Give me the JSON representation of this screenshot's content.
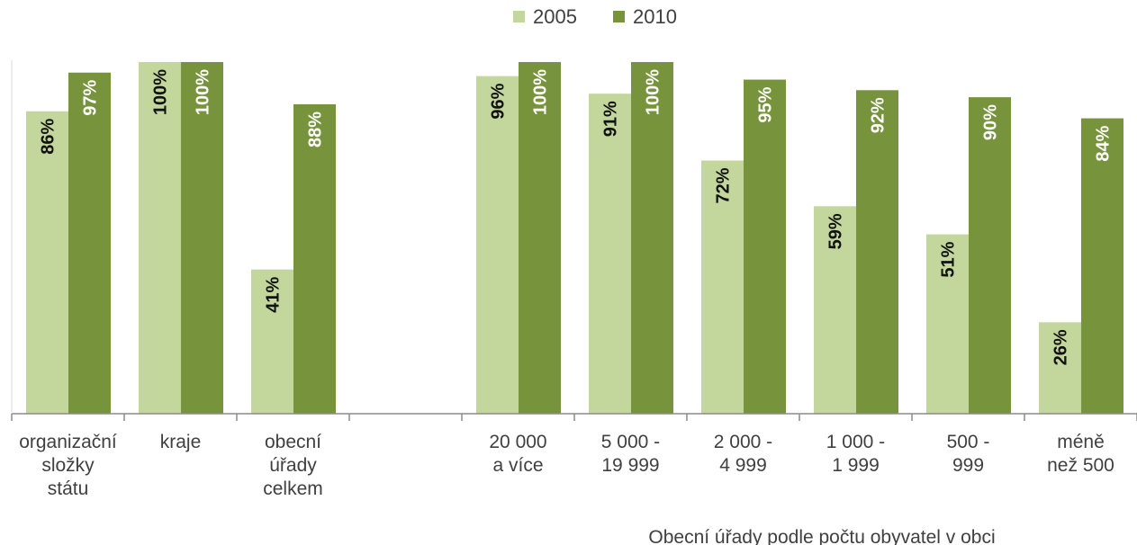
{
  "colors": {
    "s2005": "#c3d69b",
    "s2010": "#77933c",
    "axis": "#8c8c8c",
    "text": "#404040"
  },
  "legend": [
    {
      "name": "2005",
      "color": "#c3d69b"
    },
    {
      "name": "2010",
      "color": "#77933c"
    }
  ],
  "group_label": "Obecní úřady podle počtu obyvatel v obci",
  "chart_data": {
    "type": "bar",
    "categories": [
      [
        "organizační",
        "složky",
        "státu"
      ],
      [
        "kraje"
      ],
      [
        "obecní",
        "úřady",
        "celkem"
      ],
      [],
      [
        "20 000",
        "a více"
      ],
      [
        "5 000 -",
        "19 999"
      ],
      [
        "2 000 -",
        "4 999"
      ],
      [
        "1 000 -",
        "1 999"
      ],
      [
        "500 -",
        "999"
      ],
      [
        "méně",
        "než 500"
      ]
    ],
    "series": [
      {
        "name": "2005",
        "values": [
          86,
          100,
          41,
          null,
          96,
          91,
          72,
          59,
          51,
          26
        ]
      },
      {
        "name": "2010",
        "values": [
          97,
          100,
          88,
          null,
          100,
          100,
          95,
          92,
          90,
          84
        ]
      }
    ],
    "data_labels": [
      [
        "86%",
        "100%",
        "41%",
        "",
        "96%",
        "91%",
        "72%",
        "59%",
        "51%",
        "26%"
      ],
      [
        "97%",
        "100%",
        "88%",
        "",
        "100%",
        "100%",
        "95%",
        "92%",
        "90%",
        "84%"
      ]
    ],
    "ylim": [
      0,
      100
    ],
    "legend_position": "top",
    "grid": false
  }
}
